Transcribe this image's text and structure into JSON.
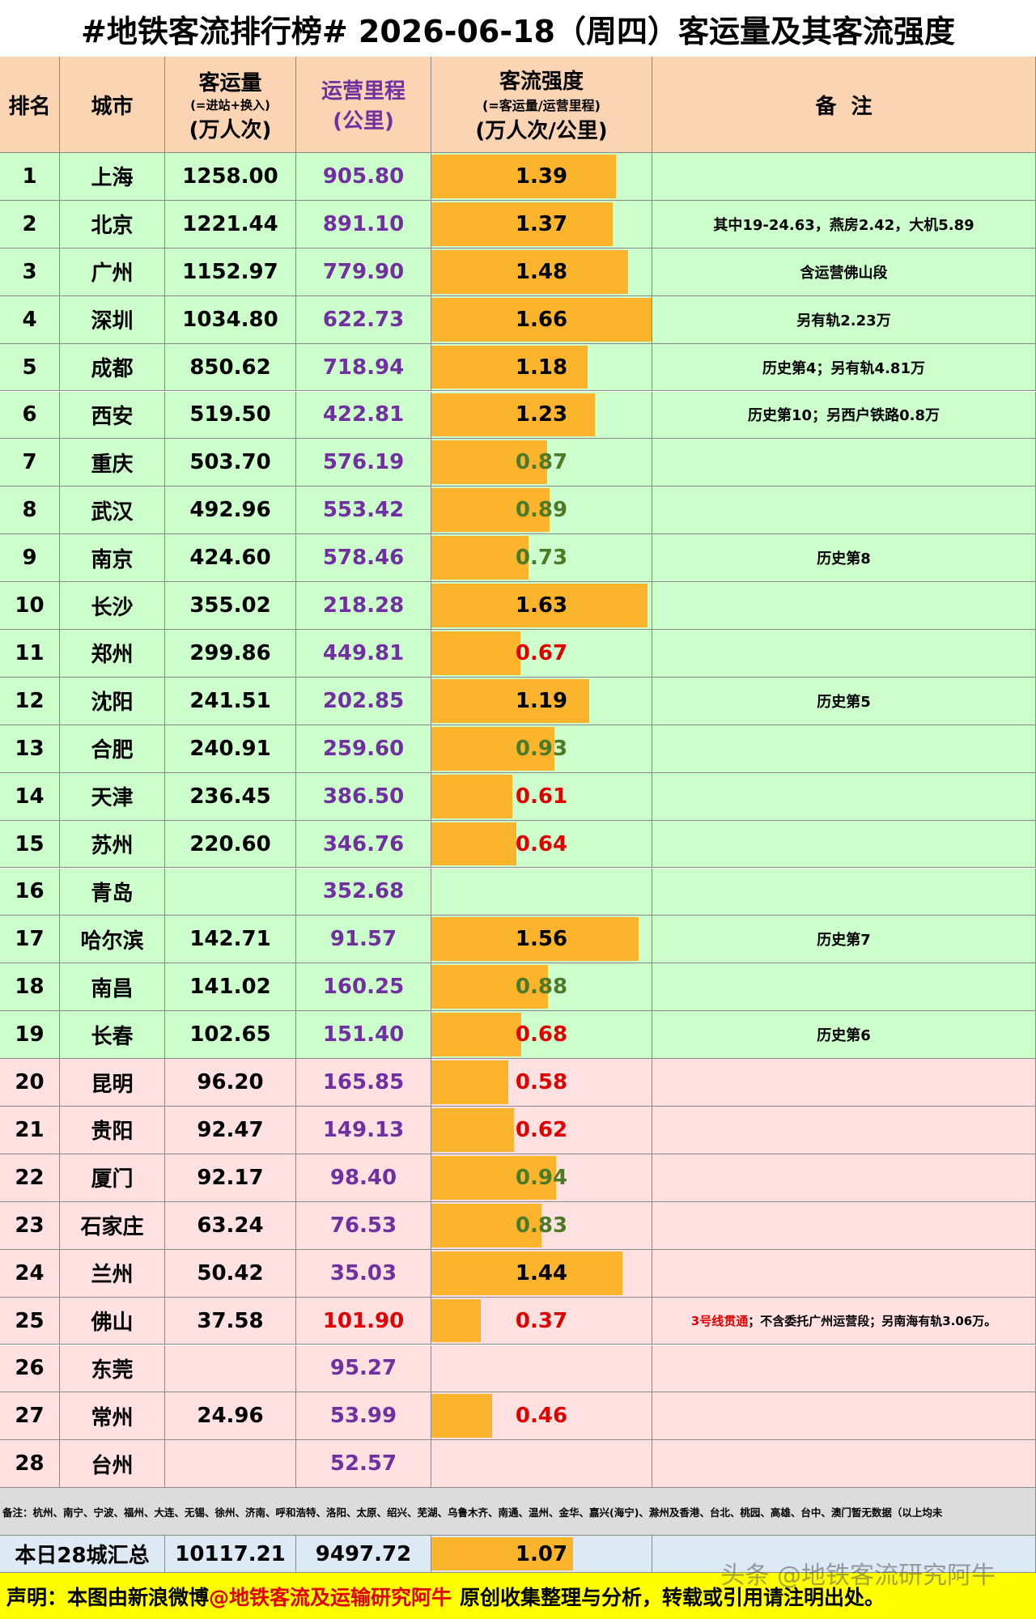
{
  "title": "#地铁客流排行榜# 2026-06-18（周四）客运量及其客流强度",
  "header": {
    "rank": "排名",
    "city": "城市",
    "passenger": [
      "客运量",
      "(=进站+换入)",
      "(万人次)"
    ],
    "mileage": [
      "运营里程",
      "(公里)"
    ],
    "intensity": [
      "客流强度",
      "(=客运量/运营里程)",
      "(万人次/公里)"
    ],
    "remark": "备  注"
  },
  "mileage_color": "#7030a0",
  "bar_color": "#fbb42c",
  "rows": [
    {
      "rank": 1,
      "city": "上海",
      "passenger": "1258.00",
      "mileage": "905.80",
      "intensity": 1.39,
      "intensity_color": "#000000",
      "bg": "#ccffcc"
    },
    {
      "rank": 2,
      "city": "北京",
      "passenger": "1221.44",
      "mileage": "891.10",
      "intensity": 1.37,
      "intensity_color": "#000000",
      "bg": "#ccffcc",
      "remark": "其中19-24.63，燕房2.42，大机5.89"
    },
    {
      "rank": 3,
      "city": "广州",
      "passenger": "1152.97",
      "mileage": "779.90",
      "intensity": 1.48,
      "intensity_color": "#000000",
      "bg": "#ccffcc",
      "remark": "含运营佛山段"
    },
    {
      "rank": 4,
      "city": "深圳",
      "passenger": "1034.80",
      "mileage": "622.73",
      "intensity": 1.66,
      "intensity_color": "#000000",
      "bg": "#ccffcc",
      "remark": "另有轨2.23万"
    },
    {
      "rank": 5,
      "city": "成都",
      "passenger": "850.62",
      "mileage": "718.94",
      "intensity": 1.18,
      "intensity_color": "#000000",
      "bg": "#ccffcc",
      "remark": "历史第4；另有轨4.81万"
    },
    {
      "rank": 6,
      "city": "西安",
      "passenger": "519.50",
      "mileage": "422.81",
      "intensity": 1.23,
      "intensity_color": "#000000",
      "bg": "#ccffcc",
      "remark": "历史第10；另西户铁路0.8万"
    },
    {
      "rank": 7,
      "city": "重庆",
      "passenger": "503.70",
      "mileage": "576.19",
      "intensity": 0.87,
      "intensity_color": "#4d7a28",
      "bg": "#ccffcc"
    },
    {
      "rank": 8,
      "city": "武汉",
      "passenger": "492.96",
      "mileage": "553.42",
      "intensity": 0.89,
      "intensity_color": "#4d7a28",
      "bg": "#ccffcc"
    },
    {
      "rank": 9,
      "city": "南京",
      "passenger": "424.60",
      "mileage": "578.46",
      "intensity": 0.73,
      "intensity_color": "#4d7a28",
      "bg": "#ccffcc",
      "remark": "历史第8"
    },
    {
      "rank": 10,
      "city": "长沙",
      "passenger": "355.02",
      "mileage": "218.28",
      "intensity": 1.63,
      "intensity_color": "#000000",
      "bg": "#ccffcc"
    },
    {
      "rank": 11,
      "city": "郑州",
      "passenger": "299.86",
      "mileage": "449.81",
      "intensity": 0.67,
      "intensity_color": "#e00000",
      "bg": "#ccffcc"
    },
    {
      "rank": 12,
      "city": "沈阳",
      "passenger": "241.51",
      "mileage": "202.85",
      "intensity": 1.19,
      "intensity_color": "#000000",
      "bg": "#ccffcc",
      "remark": "历史第5"
    },
    {
      "rank": 13,
      "city": "合肥",
      "passenger": "240.91",
      "mileage": "259.60",
      "intensity": 0.93,
      "intensity_color": "#4d7a28",
      "bg": "#ccffcc"
    },
    {
      "rank": 14,
      "city": "天津",
      "passenger": "236.45",
      "mileage": "386.50",
      "intensity": 0.61,
      "intensity_color": "#e00000",
      "bg": "#ccffcc"
    },
    {
      "rank": 15,
      "city": "苏州",
      "passenger": "220.60",
      "mileage": "346.76",
      "intensity": 0.64,
      "intensity_color": "#e00000",
      "bg": "#ccffcc"
    },
    {
      "rank": 16,
      "city": "青岛",
      "passenger": null,
      "mileage": "352.68",
      "intensity": null,
      "bg": "#ccffcc"
    },
    {
      "rank": 17,
      "city": "哈尔滨",
      "passenger": "142.71",
      "mileage": "91.57",
      "intensity": 1.56,
      "intensity_color": "#000000",
      "bg": "#ccffcc",
      "remark": "历史第7"
    },
    {
      "rank": 18,
      "city": "南昌",
      "passenger": "141.02",
      "mileage": "160.25",
      "intensity": 0.88,
      "intensity_color": "#4d7a28",
      "bg": "#ccffcc"
    },
    {
      "rank": 19,
      "city": "长春",
      "passenger": "102.65",
      "mileage": "151.40",
      "intensity": 0.68,
      "intensity_color": "#e00000",
      "bg": "#ccffcc",
      "remark": "历史第6"
    },
    {
      "rank": 20,
      "city": "昆明",
      "passenger": "96.20",
      "mileage": "165.85",
      "intensity": 0.58,
      "intensity_color": "#e00000",
      "bg": "#ffe1e1"
    },
    {
      "rank": 21,
      "city": "贵阳",
      "passenger": "92.47",
      "mileage": "149.13",
      "intensity": 0.62,
      "intensity_color": "#e00000",
      "bg": "#ffe1e1"
    },
    {
      "rank": 22,
      "city": "厦门",
      "passenger": "92.17",
      "mileage": "98.40",
      "intensity": 0.94,
      "intensity_color": "#4d7a28",
      "bg": "#ffe1e1"
    },
    {
      "rank": 23,
      "city": "石家庄",
      "passenger": "63.24",
      "mileage": "76.53",
      "intensity": 0.83,
      "intensity_color": "#4d7a28",
      "bg": "#ffe1e1"
    },
    {
      "rank": 24,
      "city": "兰州",
      "passenger": "50.42",
      "mileage": "35.03",
      "intensity": 1.44,
      "intensity_color": "#000000",
      "bg": "#ffe1e1"
    },
    {
      "rank": 25,
      "city": "佛山",
      "passenger": "37.58",
      "mileage": "101.90",
      "mileage_color": "#e00000",
      "intensity": 0.37,
      "intensity_color": "#e00000",
      "bg": "#ffe1e1",
      "remark_lead": "3号线贯通",
      "remark_lead_color": "#e00000",
      "remark": "；不含委托广州运营段；另南海有轨3.06万。"
    },
    {
      "rank": 26,
      "city": "东莞",
      "passenger": null,
      "mileage": "95.27",
      "intensity": null,
      "bg": "#ffe1e1"
    },
    {
      "rank": 27,
      "city": "常州",
      "passenger": "24.96",
      "mileage": "53.99",
      "intensity": 0.46,
      "intensity_color": "#e00000",
      "bg": "#ffe1e1"
    },
    {
      "rank": 28,
      "city": "台州",
      "passenger": null,
      "mileage": "52.57",
      "intensity": null,
      "bg": "#ffe1e1"
    }
  ],
  "note": "备注：杭州、南宁、宁波、福州、大连、无锡、徐州、济南、呼和浩特、洛阳、太原、绍兴、芜湖、乌鲁木齐、南通、温州、金华、嘉兴(海宁)、滁州及香港、台北、桃园、高雄、台中、澳门暂无数据（以上均未",
  "summary": {
    "label": "本日28城汇总",
    "passenger": "10117.21",
    "mileage": "9497.72",
    "intensity": 1.07,
    "bg": "#dde9f5"
  },
  "footer": {
    "parts": [
      "声明：本图由新浪微博",
      "@地铁客流及运输研究阿牛",
      "原创收集整理与分析，转载或引用请注明出处。"
    ],
    "watermark": "头条 @地铁客流研究阿牛"
  }
}
